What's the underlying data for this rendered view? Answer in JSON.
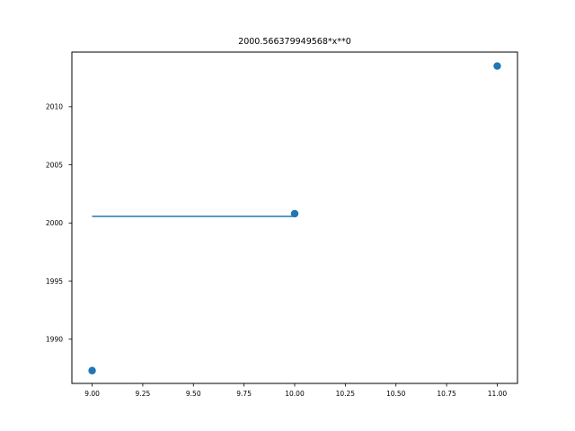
{
  "chart_data": {
    "type": "scatter",
    "title": "2000.566379949568*x**0",
    "xlabel": "",
    "ylabel": "",
    "xlim": [
      8.9,
      11.1
    ],
    "ylim": [
      1986.2,
      2014.7
    ],
    "grid": false,
    "x_ticks": [
      "9.00",
      "9.25",
      "9.50",
      "9.75",
      "10.00",
      "10.25",
      "10.50",
      "10.75",
      "11.00"
    ],
    "y_ticks": [
      "1990",
      "1995",
      "2000",
      "2005",
      "2010"
    ],
    "scatter": {
      "x": [
        9,
        10,
        11
      ],
      "y": [
        1987.3,
        2000.8,
        2013.5
      ],
      "color": "#1f77b4"
    },
    "fit_line": {
      "x": [
        9,
        10
      ],
      "y": [
        2000.566379949568,
        2000.566379949568
      ],
      "color": "#1f77b4"
    }
  }
}
